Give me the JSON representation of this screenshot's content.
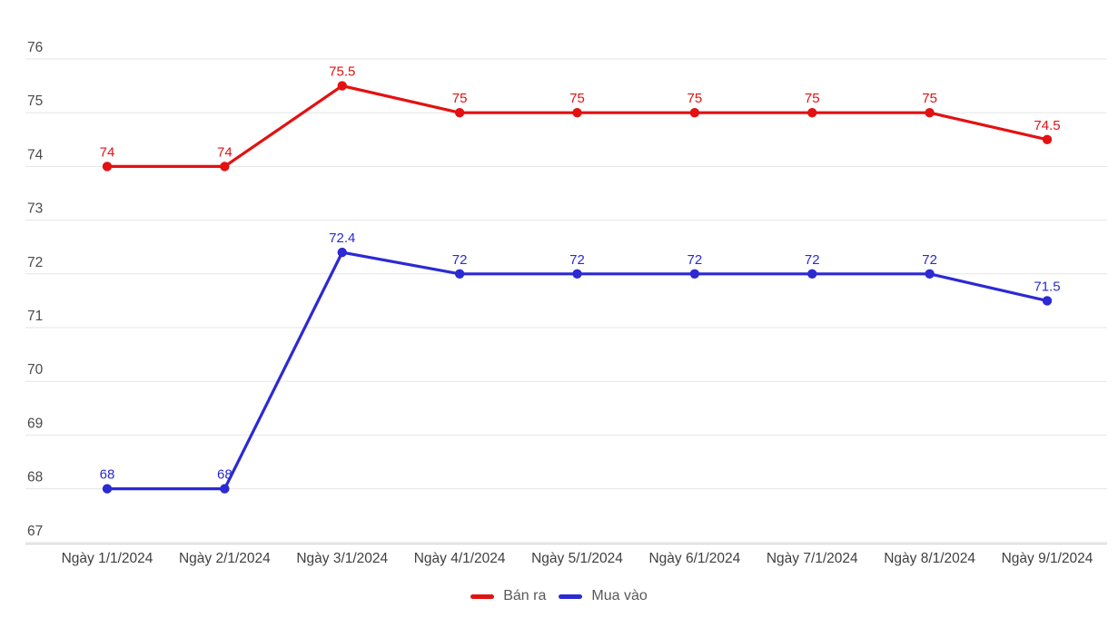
{
  "chart_data": {
    "type": "line",
    "categories": [
      "Ngày 1/1/2024",
      "Ngày 2/1/2024",
      "Ngày 3/1/2024",
      "Ngày 4/1/2024",
      "Ngày 5/1/2024",
      "Ngày 6/1/2024",
      "Ngày 7/1/2024",
      "Ngày 8/1/2024",
      "Ngày 9/1/2024"
    ],
    "series": [
      {
        "name": "Bán ra",
        "color": "#e31111",
        "values": [
          74,
          74,
          75.5,
          75,
          75,
          75,
          75,
          75,
          74.5
        ]
      },
      {
        "name": "Mua vào",
        "color": "#2b2ad3",
        "values": [
          68,
          68,
          72.4,
          72,
          72,
          72,
          72,
          72,
          71.5
        ]
      }
    ],
    "title": "",
    "xlabel": "",
    "ylabel": "",
    "ylim": [
      67,
      76
    ],
    "y_ticks": [
      76,
      75,
      74,
      73,
      72,
      71,
      70,
      69,
      68,
      67
    ],
    "grid": true,
    "data_labels": true,
    "legend_position": "bottom",
    "colors": {
      "gridline": "#e5e5e5",
      "axis_line": "#cccccc",
      "tick_label": "#4a4a4a",
      "legend_text": "#58585a",
      "background": "#ffffff"
    }
  }
}
